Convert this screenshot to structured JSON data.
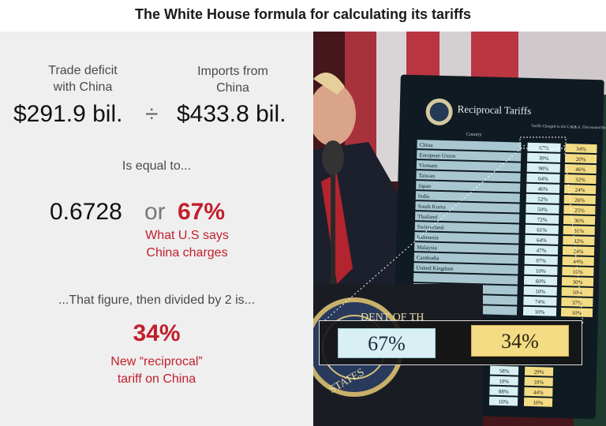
{
  "title": "The White House formula for calculating its tariffs",
  "formula": {
    "numerator_label": [
      "Trade deficit",
      "with China"
    ],
    "denominator_label": [
      "Imports from",
      "China"
    ],
    "numerator_value": "$291.9 bil.",
    "divide_symbol": "÷",
    "denominator_value": "$433.8 bil.",
    "equals_text": "Is equal to...",
    "decimal_result": "0.6728",
    "or_text": "or",
    "percent_result": "67%",
    "percent_caption": [
      "What U.S says",
      "China charges"
    ],
    "halved_text": "...That figure, then divided by 2 is...",
    "final_percent": "34%",
    "final_caption": [
      "New “reciprocal”",
      "tariff on China"
    ]
  },
  "board": {
    "title": "Reciprocal Tariffs",
    "col_country": "Country",
    "col_charged": [
      "Tariffs Charged",
      "to the U.S.A."
    ],
    "col_discounted": [
      "U.S.A. Discounted",
      "Reciprocal Tariffs"
    ],
    "rows": [
      {
        "country": "China",
        "charged": "67%",
        "recip": "34%"
      },
      {
        "country": "European Union",
        "charged": "39%",
        "recip": "20%"
      },
      {
        "country": "Vietnam",
        "charged": "90%",
        "recip": "46%"
      },
      {
        "country": "Taiwan",
        "charged": "64%",
        "recip": "32%"
      },
      {
        "country": "Japan",
        "charged": "46%",
        "recip": "24%"
      },
      {
        "country": "India",
        "charged": "52%",
        "recip": "26%"
      },
      {
        "country": "South Korea",
        "charged": "50%",
        "recip": "25%"
      },
      {
        "country": "Thailand",
        "charged": "72%",
        "recip": "36%"
      },
      {
        "country": "Switzerland",
        "charged": "61%",
        "recip": "31%"
      },
      {
        "country": "Indonesia",
        "charged": "64%",
        "recip": "32%"
      },
      {
        "country": "Malaysia",
        "charged": "47%",
        "recip": "24%"
      },
      {
        "country": "Cambodia",
        "charged": "97%",
        "recip": "49%"
      },
      {
        "country": "United Kingdom",
        "charged": "10%",
        "recip": "10%"
      },
      {
        "country": "",
        "charged": "60%",
        "recip": "30%"
      },
      {
        "country": "",
        "charged": "10%",
        "recip": "10%"
      },
      {
        "country": "",
        "charged": "74%",
        "recip": "37%"
      },
      {
        "country": "",
        "charged": "10%",
        "recip": "10%"
      }
    ],
    "lower_rows": [
      {
        "charged": "58%",
        "recip": "29%"
      },
      {
        "charged": "10%",
        "recip": "10%"
      },
      {
        "charged": "88%",
        "recip": "44%"
      },
      {
        "charged": "10%",
        "recip": "10%"
      }
    ]
  },
  "seal_text": [
    "DENT OF TH",
    "STATES"
  ],
  "zoom": {
    "charged": "67%",
    "recip": "34%"
  },
  "colors": {
    "red_accent": "#c21f2c",
    "panel_bg": "#efefef",
    "blue_cell": "#d8eff3",
    "yellow_cell": "#f3dc84"
  }
}
